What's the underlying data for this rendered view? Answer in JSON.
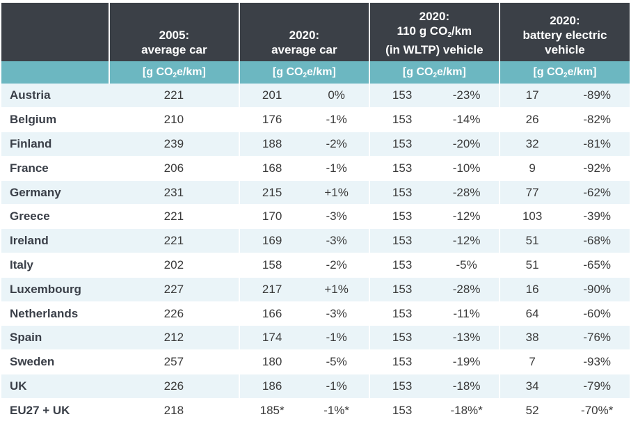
{
  "header": {
    "col_2005": [
      "2005:",
      "average car"
    ],
    "col_2020_avg": [
      "2020:",
      "average car"
    ],
    "col_2020_110": [
      "2020:",
      "110 g CO",
      "2",
      "/km",
      "(in WLTP) vehicle"
    ],
    "col_2020_bev": [
      "2020:",
      "battery electric",
      "vehicle"
    ],
    "unit_prefix": "[g CO",
    "unit_sub": "2",
    "unit_suffix": "e/km]"
  },
  "rows": [
    {
      "country": "Austria",
      "v2005": "221",
      "avg2020": "201",
      "avg2020_pct": "0%",
      "wltp": "153",
      "wltp_pct": "-23%",
      "bev": "17",
      "bev_pct": "-89%"
    },
    {
      "country": "Belgium",
      "v2005": "210",
      "avg2020": "176",
      "avg2020_pct": "-1%",
      "wltp": "153",
      "wltp_pct": "-14%",
      "bev": "26",
      "bev_pct": "-82%"
    },
    {
      "country": "Finland",
      "v2005": "239",
      "avg2020": "188",
      "avg2020_pct": "-2%",
      "wltp": "153",
      "wltp_pct": "-20%",
      "bev": "32",
      "bev_pct": "-81%"
    },
    {
      "country": "France",
      "v2005": "206",
      "avg2020": "168",
      "avg2020_pct": "-1%",
      "wltp": "153",
      "wltp_pct": "-10%",
      "bev": "9",
      "bev_pct": "-92%"
    },
    {
      "country": "Germany",
      "v2005": "231",
      "avg2020": "215",
      "avg2020_pct": "+1%",
      "wltp": "153",
      "wltp_pct": "-28%",
      "bev": "77",
      "bev_pct": "-62%"
    },
    {
      "country": "Greece",
      "v2005": "221",
      "avg2020": "170",
      "avg2020_pct": "-3%",
      "wltp": "153",
      "wltp_pct": "-12%",
      "bev": "103",
      "bev_pct": "-39%"
    },
    {
      "country": "Ireland",
      "v2005": "221",
      "avg2020": "169",
      "avg2020_pct": "-3%",
      "wltp": "153",
      "wltp_pct": "-12%",
      "bev": "51",
      "bev_pct": "-68%"
    },
    {
      "country": "Italy",
      "v2005": "202",
      "avg2020": "158",
      "avg2020_pct": "-2%",
      "wltp": "153",
      "wltp_pct": "-5%",
      "bev": "51",
      "bev_pct": "-65%"
    },
    {
      "country": "Luxembourg",
      "v2005": "227",
      "avg2020": "217",
      "avg2020_pct": "+1%",
      "wltp": "153",
      "wltp_pct": "-28%",
      "bev": "16",
      "bev_pct": "-90%"
    },
    {
      "country": "Netherlands",
      "v2005": "226",
      "avg2020": "166",
      "avg2020_pct": "-3%",
      "wltp": "153",
      "wltp_pct": "-11%",
      "bev": "64",
      "bev_pct": "-60%"
    },
    {
      "country": "Spain",
      "v2005": "212",
      "avg2020": "174",
      "avg2020_pct": "-1%",
      "wltp": "153",
      "wltp_pct": "-13%",
      "bev": "38",
      "bev_pct": "-76%"
    },
    {
      "country": "Sweden",
      "v2005": "257",
      "avg2020": "180",
      "avg2020_pct": "-5%",
      "wltp": "153",
      "wltp_pct": "-19%",
      "bev": "7",
      "bev_pct": "-93%"
    },
    {
      "country": "UK",
      "v2005": "226",
      "avg2020": "186",
      "avg2020_pct": "-1%",
      "wltp": "153",
      "wltp_pct": "-18%",
      "bev": "34",
      "bev_pct": "-79%"
    },
    {
      "country": "EU27 + UK",
      "v2005": "218",
      "avg2020": "185*",
      "avg2020_pct": "-1%*",
      "wltp": "153",
      "wltp_pct": "-18%*",
      "bev": "52",
      "bev_pct": "-70%*"
    }
  ],
  "colors": {
    "header_bg": "#3b4047",
    "unit_bg": "#6cb7c1",
    "row_alt_bg": "#eaf4f8",
    "text": "#3a3a3a"
  }
}
